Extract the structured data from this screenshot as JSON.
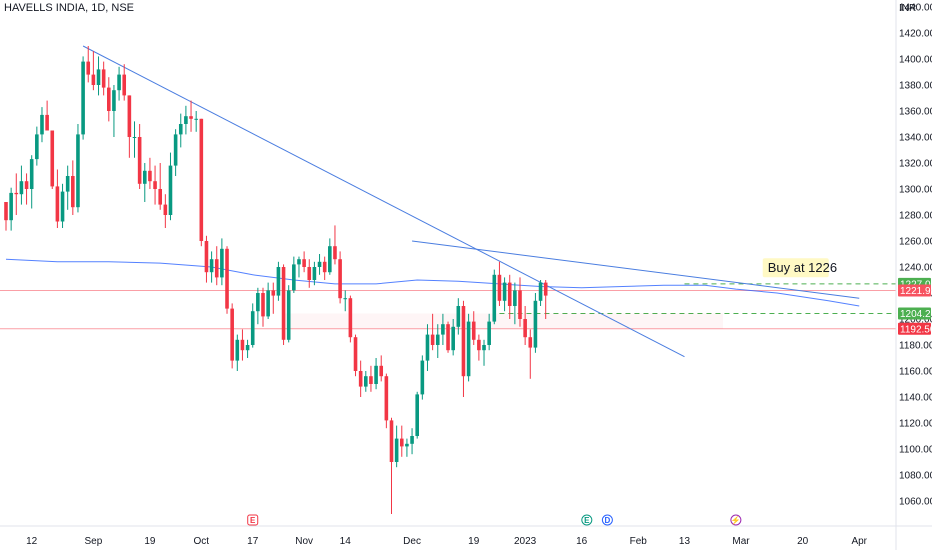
{
  "chart_data": {
    "type": "candlestick",
    "title": "HAVELLS INDIA, 1D, NSE",
    "currency": "INR",
    "y_axis": {
      "range": [
        1050,
        1444
      ],
      "ticks": [
        1060,
        1080,
        1100,
        1120,
        1140,
        1160,
        1180,
        1200,
        1220,
        1240,
        1260,
        1280,
        1300,
        1320,
        1340,
        1360,
        1380,
        1400,
        1420,
        1440
      ],
      "position": "right"
    },
    "x_axis": {
      "ticks": [
        {
          "label": "12",
          "index": 5
        },
        {
          "label": "Sep",
          "index": 17
        },
        {
          "label": "19",
          "index": 28
        },
        {
          "label": "Oct",
          "index": 38
        },
        {
          "label": "17",
          "index": 48
        },
        {
          "label": "Nov",
          "index": 58
        },
        {
          "label": "14",
          "index": 66
        },
        {
          "label": "Dec",
          "index": 79
        },
        {
          "label": "19",
          "index": 91
        },
        {
          "label": "2023",
          "index": 101,
          "bold": true
        },
        {
          "label": "16",
          "index": 112
        },
        {
          "label": "Feb",
          "index": 123
        },
        {
          "label": "13",
          "index": 132
        },
        {
          "label": "Mar",
          "index": 143
        },
        {
          "label": "20",
          "index": 155
        },
        {
          "label": "Apr",
          "index": 166
        }
      ]
    },
    "candles": [
      [
        1290,
        1290,
        1268,
        1276
      ],
      [
        1276,
        1301,
        1268,
        1297
      ],
      [
        1297,
        1312,
        1280,
        1296
      ],
      [
        1296,
        1318,
        1288,
        1306
      ],
      [
        1306,
        1312,
        1288,
        1300
      ],
      [
        1300,
        1326,
        1285,
        1323
      ],
      [
        1323,
        1348,
        1318,
        1342
      ],
      [
        1342,
        1363,
        1336,
        1357
      ],
      [
        1357,
        1368,
        1345,
        1345
      ],
      [
        1345,
        1345,
        1300,
        1302
      ],
      [
        1302,
        1315,
        1270,
        1275
      ],
      [
        1275,
        1304,
        1270,
        1298
      ],
      [
        1298,
        1318,
        1284,
        1310
      ],
      [
        1310,
        1322,
        1280,
        1286
      ],
      [
        1286,
        1350,
        1282,
        1342
      ],
      [
        1342,
        1402,
        1338,
        1398
      ],
      [
        1398,
        1410,
        1382,
        1388
      ],
      [
        1388,
        1406,
        1376,
        1380
      ],
      [
        1380,
        1402,
        1372,
        1392
      ],
      [
        1392,
        1398,
        1372,
        1378
      ],
      [
        1378,
        1386,
        1352,
        1360
      ],
      [
        1360,
        1380,
        1340,
        1376
      ],
      [
        1376,
        1394,
        1368,
        1388
      ],
      [
        1388,
        1396,
        1368,
        1372
      ],
      [
        1372,
        1372,
        1324,
        1340
      ],
      [
        1340,
        1352,
        1324,
        1340
      ],
      [
        1340,
        1350,
        1300,
        1304
      ],
      [
        1304,
        1320,
        1290,
        1314
      ],
      [
        1314,
        1324,
        1300,
        1306
      ],
      [
        1306,
        1318,
        1288,
        1300
      ],
      [
        1300,
        1320,
        1284,
        1288
      ],
      [
        1288,
        1296,
        1270,
        1280
      ],
      [
        1280,
        1328,
        1276,
        1318
      ],
      [
        1318,
        1346,
        1310,
        1342
      ],
      [
        1342,
        1358,
        1332,
        1350
      ],
      [
        1350,
        1364,
        1342,
        1356
      ],
      [
        1356,
        1368,
        1344,
        1354
      ],
      [
        1354,
        1360,
        1344,
        1354
      ],
      [
        1354,
        1354,
        1256,
        1260
      ],
      [
        1260,
        1264,
        1228,
        1236
      ],
      [
        1236,
        1252,
        1228,
        1246
      ],
      [
        1246,
        1256,
        1226,
        1232
      ],
      [
        1232,
        1262,
        1226,
        1254
      ],
      [
        1254,
        1256,
        1204,
        1208
      ],
      [
        1208,
        1212,
        1162,
        1168
      ],
      [
        1168,
        1188,
        1160,
        1184
      ],
      [
        1184,
        1192,
        1168,
        1176
      ],
      [
        1176,
        1184,
        1170,
        1180
      ],
      [
        1180,
        1212,
        1178,
        1206
      ],
      [
        1206,
        1224,
        1196,
        1220
      ],
      [
        1220,
        1224,
        1194,
        1202
      ],
      [
        1202,
        1228,
        1200,
        1222
      ],
      [
        1222,
        1228,
        1204,
        1218
      ],
      [
        1218,
        1244,
        1214,
        1240
      ],
      [
        1240,
        1242,
        1180,
        1184
      ],
      [
        1184,
        1226,
        1182,
        1222
      ],
      [
        1222,
        1248,
        1220,
        1242
      ],
      [
        1242,
        1248,
        1232,
        1246
      ],
      [
        1246,
        1252,
        1236,
        1240
      ],
      [
        1240,
        1246,
        1224,
        1230
      ],
      [
        1230,
        1244,
        1226,
        1240
      ],
      [
        1240,
        1250,
        1234,
        1244
      ],
      [
        1244,
        1248,
        1230,
        1236
      ],
      [
        1236,
        1262,
        1234,
        1256
      ],
      [
        1256,
        1272,
        1242,
        1246
      ],
      [
        1246,
        1252,
        1212,
        1216
      ],
      [
        1216,
        1222,
        1206,
        1216
      ],
      [
        1216,
        1218,
        1182,
        1186
      ],
      [
        1186,
        1188,
        1156,
        1160
      ],
      [
        1160,
        1168,
        1140,
        1148
      ],
      [
        1148,
        1160,
        1144,
        1156
      ],
      [
        1156,
        1164,
        1144,
        1150
      ],
      [
        1150,
        1170,
        1146,
        1164
      ],
      [
        1164,
        1172,
        1152,
        1156
      ],
      [
        1156,
        1158,
        1116,
        1122
      ],
      [
        1122,
        1124,
        1050,
        1090
      ],
      [
        1090,
        1118,
        1086,
        1108
      ],
      [
        1108,
        1118,
        1094,
        1102
      ],
      [
        1102,
        1108,
        1094,
        1104
      ],
      [
        1104,
        1116,
        1096,
        1110
      ],
      [
        1110,
        1144,
        1108,
        1142
      ],
      [
        1142,
        1172,
        1138,
        1168
      ],
      [
        1168,
        1196,
        1160,
        1188
      ],
      [
        1188,
        1204,
        1176,
        1180
      ],
      [
        1180,
        1196,
        1170,
        1188
      ],
      [
        1188,
        1204,
        1180,
        1196
      ],
      [
        1196,
        1198,
        1174,
        1176
      ],
      [
        1176,
        1200,
        1172,
        1194
      ],
      [
        1194,
        1216,
        1188,
        1210
      ],
      [
        1210,
        1214,
        1140,
        1156
      ],
      [
        1156,
        1204,
        1152,
        1198
      ],
      [
        1198,
        1206,
        1180,
        1184
      ],
      [
        1184,
        1188,
        1168,
        1176
      ],
      [
        1176,
        1184,
        1164,
        1180
      ],
      [
        1180,
        1204,
        1176,
        1198
      ],
      [
        1198,
        1238,
        1196,
        1234
      ],
      [
        1234,
        1244,
        1210,
        1214
      ],
      [
        1214,
        1232,
        1206,
        1228
      ],
      [
        1228,
        1234,
        1200,
        1210
      ],
      [
        1210,
        1228,
        1196,
        1222
      ],
      [
        1222,
        1232,
        1194,
        1200
      ],
      [
        1200,
        1210,
        1180,
        1186
      ],
      [
        1186,
        1192,
        1154,
        1178
      ],
      [
        1178,
        1220,
        1174,
        1214
      ],
      [
        1214,
        1230,
        1210,
        1228
      ],
      [
        1228,
        1230,
        1200,
        1218
      ]
    ],
    "moving_average": [
      [
        0,
        1246
      ],
      [
        10,
        1244
      ],
      [
        20,
        1244
      ],
      [
        30,
        1243
      ],
      [
        40,
        1240
      ],
      [
        48,
        1234
      ],
      [
        56,
        1230
      ],
      [
        64,
        1227
      ],
      [
        72,
        1227
      ],
      [
        80,
        1230
      ],
      [
        88,
        1229
      ],
      [
        96,
        1227
      ],
      [
        104,
        1225
      ],
      [
        112,
        1224
      ],
      [
        120,
        1225
      ],
      [
        128,
        1226
      ],
      [
        136,
        1226
      ],
      [
        142,
        1223
      ],
      [
        150,
        1220
      ],
      [
        160,
        1214
      ],
      [
        166,
        1210
      ]
    ],
    "trendlines": [
      {
        "from": [
          15,
          1410
        ],
        "to": [
          132,
          1171
        ]
      },
      {
        "from": [
          79,
          1260
        ],
        "to": [
          166,
          1216
        ]
      }
    ],
    "horizontal_levels": [
      {
        "value": 1227,
        "label": "1227.00",
        "style": "dashed",
        "color": "#4caf50",
        "from_index": 132
      },
      {
        "value": 1204.2,
        "label": "1204.20",
        "style": "dashed",
        "color": "#4caf50",
        "from_index": 96
      },
      {
        "value": 1221.9,
        "label": "1221.90",
        "style": "solid",
        "color": "#f7525f"
      },
      {
        "value": 1192.5,
        "label": "1192.50",
        "style": "solid",
        "color": "#f7525f"
      }
    ],
    "annotation": {
      "text": "Buy at 1226",
      "index": 148,
      "value": 1236
    },
    "last_price_label": "1221.90",
    "grid": false,
    "legend": "none"
  },
  "events": [
    {
      "index": 48,
      "letter": "E",
      "color": "#f23645"
    },
    {
      "index": 113,
      "letter": "E",
      "color": "#089981"
    },
    {
      "index": 117,
      "letter": "D",
      "color": "#2962ff"
    },
    {
      "index": 142,
      "letter": "⚡",
      "color": "#9c27b0"
    }
  ],
  "colors": {
    "up": "#089981",
    "down": "#f23645",
    "ma": "#2962ff",
    "trend": "#4a7de0",
    "axis_text": "#131722"
  }
}
